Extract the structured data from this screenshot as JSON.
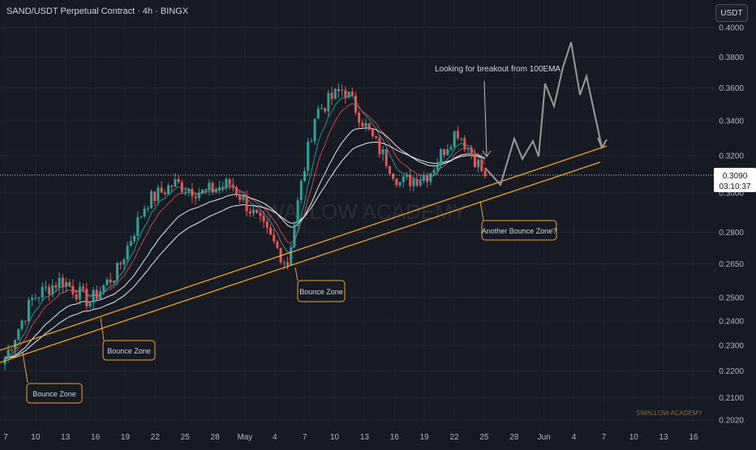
{
  "header": {
    "title": "SAND/USDT Perpetual Contract · 4h · BINGX"
  },
  "unit_button": "USDT",
  "price_tag": {
    "price": "0.3090",
    "countdown": "03:10:37"
  },
  "annotations": {
    "breakout_note": "Looking for breakout from 100EMA",
    "bounce_1": "Bounce Zone",
    "bounce_2": "Bounce Zone",
    "bounce_3": "Bounce Zone",
    "bounce_4": "Another Bounce Zone?"
  },
  "watermark": "SWALLOW ACADEMY",
  "watermark_small": "SWALLOW ACADEMY",
  "colors": {
    "background": "#161a25",
    "up": "#26a69a",
    "down": "#ef5350",
    "ema_fast": "#26a69a",
    "ema_mid": "#e04848",
    "ema_slow": "#ffffff",
    "trendline": "#f7a21b",
    "projection": "#9a9a9a"
  },
  "chart_data": {
    "type": "candlestick",
    "timeframe": "4h",
    "price_scale": "log",
    "ylim": [
      0.2,
      0.405
    ],
    "y_ticks": [
      "0.4000",
      "0.3800",
      "0.3600",
      "0.3400",
      "0.3200",
      "0.3000",
      "0.2800",
      "0.2650",
      "0.2500",
      "0.2400",
      "0.2300",
      "0.2200",
      "0.2100",
      "0.2020"
    ],
    "x_ticks": [
      "7",
      "10",
      "13",
      "16",
      "19",
      "22",
      "25",
      "28",
      "May",
      "4",
      "7",
      "10",
      "13",
      "16",
      "19",
      "22",
      "25",
      "28",
      "Jun",
      "4",
      "7",
      "10",
      "13",
      "16"
    ],
    "last_price": 0.309,
    "approx_daily_close": [
      {
        "date": "Apr 7",
        "close": 0.225
      },
      {
        "date": "Apr 10",
        "close": 0.25
      },
      {
        "date": "Apr 13",
        "close": 0.258
      },
      {
        "date": "Apr 16",
        "close": 0.248
      },
      {
        "date": "Apr 19",
        "close": 0.262
      },
      {
        "date": "Apr 22",
        "close": 0.295
      },
      {
        "date": "Apr 25",
        "close": 0.305
      },
      {
        "date": "Apr 28",
        "close": 0.3
      },
      {
        "date": "May 1",
        "close": 0.305
      },
      {
        "date": "May 4",
        "close": 0.285
      },
      {
        "date": "May 7",
        "close": 0.265
      },
      {
        "date": "May 10",
        "close": 0.345
      },
      {
        "date": "May 13",
        "close": 0.36
      },
      {
        "date": "May 16",
        "close": 0.33
      },
      {
        "date": "May 19",
        "close": 0.305
      },
      {
        "date": "May 22",
        "close": 0.31
      },
      {
        "date": "May 24",
        "close": 0.335
      },
      {
        "date": "May 26",
        "close": 0.309
      }
    ]
  }
}
